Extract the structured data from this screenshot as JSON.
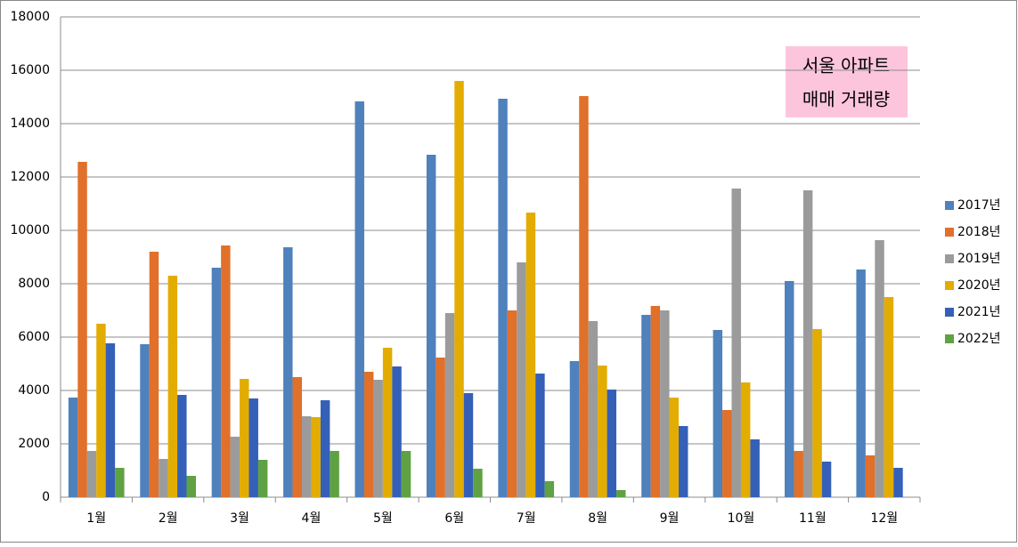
{
  "chart_data": {
    "type": "bar",
    "annotation": [
      "서울 아파트",
      "매매 거래량"
    ],
    "categories": [
      "1월",
      "2월",
      "3월",
      "4월",
      "5월",
      "6월",
      "7월",
      "8월",
      "9월",
      "10월",
      "11월",
      "12월"
    ],
    "series": [
      {
        "name": "2017년",
        "color": "#4f81bd",
        "values": [
          3733,
          5733,
          8600,
          9367,
          14833,
          12833,
          14933,
          5100,
          6833,
          6267,
          8100,
          8533
        ]
      },
      {
        "name": "2018년",
        "color": "#e0702a",
        "values": [
          12567,
          9200,
          9433,
          4500,
          4700,
          5233,
          7000,
          15033,
          7167,
          3267,
          1733,
          1567
        ]
      },
      {
        "name": "2019년",
        "color": "#9b9b9b",
        "values": [
          1733,
          1433,
          2267,
          3033,
          4400,
          6900,
          8800,
          6600,
          7000,
          11567,
          11500,
          9633
        ]
      },
      {
        "name": "2020년",
        "color": "#e3ac00",
        "values": [
          6500,
          8300,
          4433,
          3000,
          5600,
          15600,
          10667,
          4933,
          3733,
          4300,
          6300,
          7500
        ]
      },
      {
        "name": "2021년",
        "color": "#3560b8",
        "values": [
          5767,
          3833,
          3700,
          3633,
          4900,
          3900,
          4633,
          4033,
          2667,
          2167,
          1333,
          1100
        ]
      },
      {
        "name": "2022년",
        "color": "#5fa243",
        "values": [
          1100,
          800,
          1400,
          1733,
          1733,
          1067,
          600,
          267,
          null,
          null,
          null,
          null
        ]
      }
    ],
    "ylim": [
      0,
      18000
    ],
    "yticks": [
      0,
      2000,
      4000,
      6000,
      8000,
      10000,
      12000,
      14000,
      16000,
      18000
    ],
    "grid": true,
    "legend": "right"
  }
}
